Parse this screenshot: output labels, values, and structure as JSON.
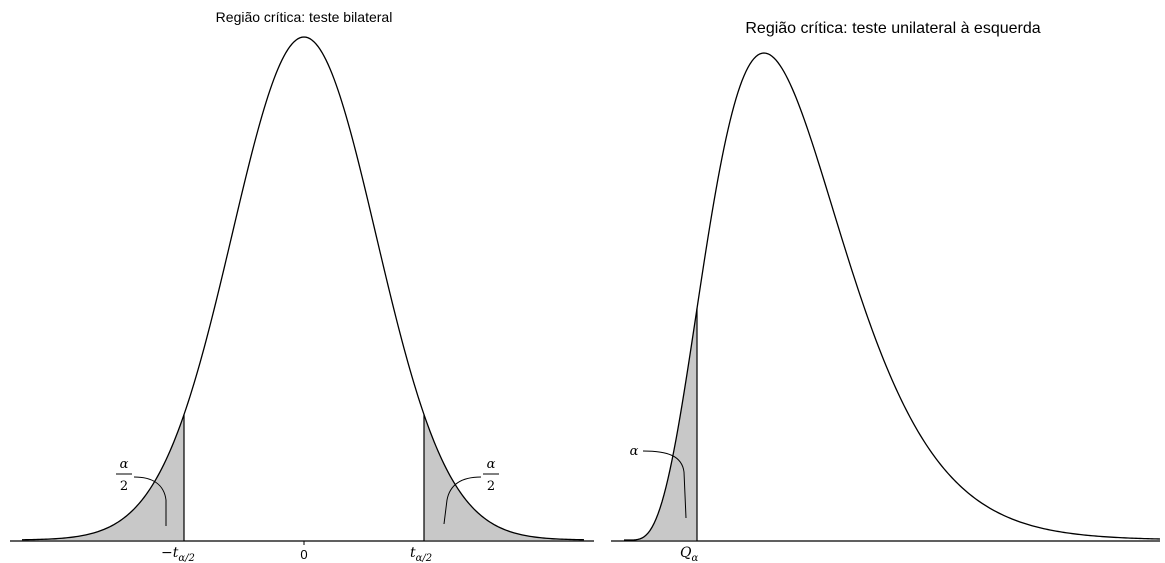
{
  "left": {
    "title": "Região crítica: teste bilateral",
    "tick_center": "0",
    "tick_left_sign": "−",
    "tick_left_t": "t",
    "tick_left_sub": "α/2",
    "tick_right_t": "t",
    "tick_right_sub": "α/2",
    "tail_left_num": "α",
    "tail_left_den": "2",
    "tail_right_num": "α",
    "tail_right_den": "2"
  },
  "right": {
    "title": "Região crítica: teste unilateral à esquerda",
    "tick_q": "Q",
    "tick_q_sub": "α",
    "tail_label": "α"
  },
  "colors": {
    "shade": "#c8c8c8",
    "curve": "#000000"
  }
}
